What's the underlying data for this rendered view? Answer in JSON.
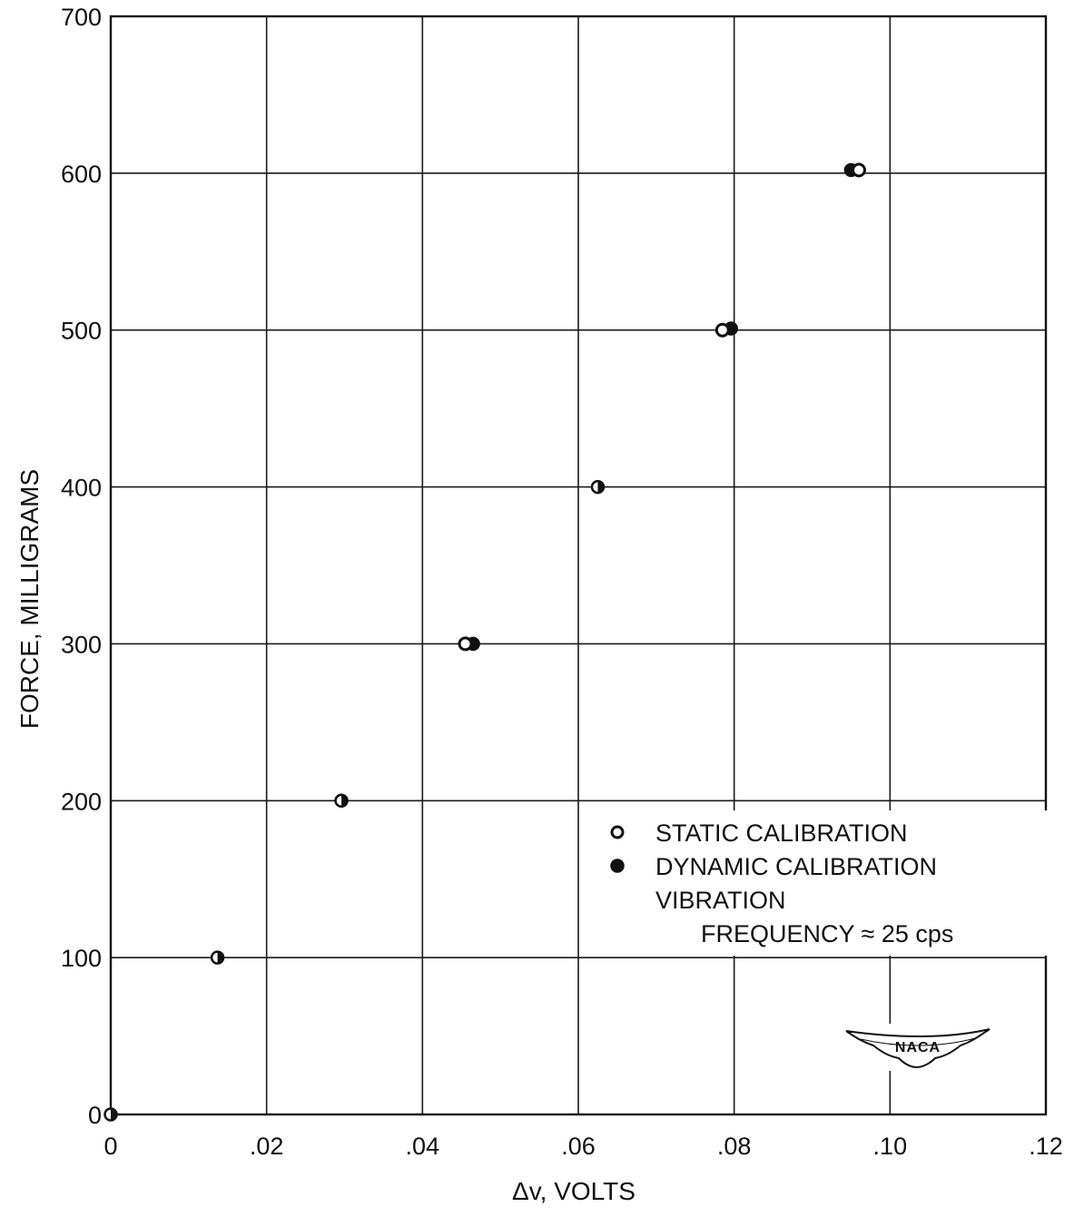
{
  "chart_data": {
    "type": "scatter",
    "xlabel": "Δv, VOLTS",
    "ylabel": "FORCE, MILLIGRAMS",
    "xlim": [
      0,
      0.12
    ],
    "ylim": [
      0,
      700
    ],
    "x_ticks": [
      0,
      0.02,
      0.04,
      0.06,
      0.08,
      0.1,
      0.12
    ],
    "x_tick_labels": [
      "0",
      ".02",
      ".04",
      ".06",
      ".08",
      ".10",
      ".12"
    ],
    "y_ticks": [
      0,
      100,
      200,
      300,
      400,
      500,
      600,
      700
    ],
    "y_tick_labels": [
      "0",
      "100",
      "200",
      "300",
      "400",
      "500",
      "600",
      "700"
    ],
    "grid": true,
    "series": [
      {
        "name": "STATIC CALIBRATION",
        "marker": "open-circle",
        "points": [
          {
            "x": 0,
            "y": 0
          },
          {
            "x": 0.0137,
            "y": 100
          },
          {
            "x": 0.0296,
            "y": 200
          },
          {
            "x": 0.0455,
            "y": 300
          },
          {
            "x": 0.0625,
            "y": 400
          },
          {
            "x": 0.0785,
            "y": 500
          },
          {
            "x": 0.096,
            "y": 602
          }
        ]
      },
      {
        "name": "DYNAMIC CALIBRATION",
        "marker": "filled-circle",
        "points": [
          {
            "x": 0,
            "y": 0
          },
          {
            "x": 0.0137,
            "y": 100
          },
          {
            "x": 0.0296,
            "y": 200
          },
          {
            "x": 0.0465,
            "y": 300
          },
          {
            "x": 0.0625,
            "y": 400
          },
          {
            "x": 0.0796,
            "y": 501
          },
          {
            "x": 0.095,
            "y": 602
          }
        ]
      }
    ],
    "legend": {
      "placement": "inside-lower-right",
      "entries": [
        "STATIC CALIBRATION",
        "DYNAMIC CALIBRATION"
      ],
      "note_line1": "VIBRATION",
      "note_line2": "FREQUENCY ≈ 25 cps"
    },
    "logo_text": "NACA"
  }
}
